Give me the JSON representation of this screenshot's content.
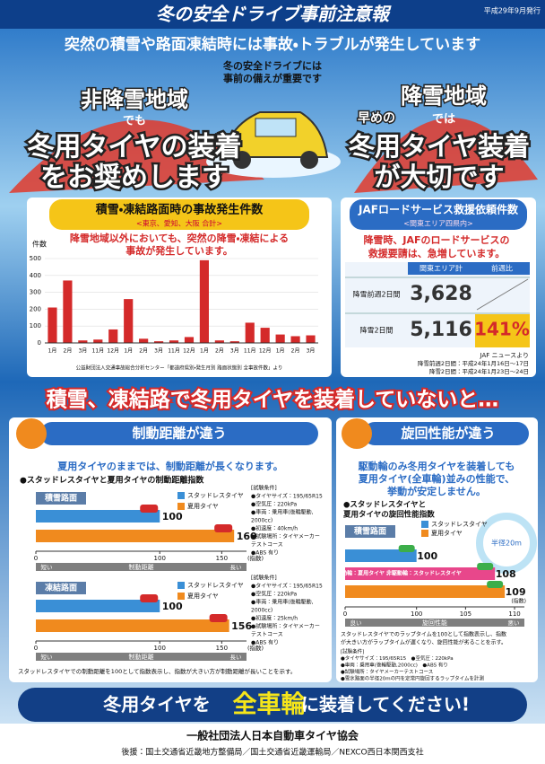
{
  "header": {
    "title": "冬の安全ドライブ事前注意報",
    "date": "平成29年9月発行"
  },
  "headline": "突然の積雪や路面凍結時には事故・トラブルが発生しています",
  "center_note": [
    "冬の安全ドライブには",
    "事前の備えが重要です"
  ],
  "left_panel": {
    "label": "非降雪地域",
    "sub": "でも",
    "message": [
      "冬用タイヤの装着",
      "をお奨めします"
    ]
  },
  "right_panel": {
    "label": "降雪地域",
    "pre": "早めの",
    "sub": "では",
    "message": [
      "冬用タイヤ装着",
      "が大切です"
    ]
  },
  "accident_chart": {
    "type": "bar",
    "title": "積雪・凍結路面時の事故発生件数",
    "subtitle": "<東京、愛知、大阪 合計>",
    "y_label": "件数",
    "note": [
      "降雪地域以外においても、突然の降雪・凍結による",
      "事故が発生しています。"
    ],
    "categories": [
      "1月",
      "2月",
      "3月",
      "11月",
      "12月",
      "1月",
      "2月",
      "3月",
      "11月",
      "12月",
      "1月",
      "2月",
      "3月",
      "11月",
      "12月",
      "1月",
      "2月",
      "3月"
    ],
    "values": [
      210,
      370,
      15,
      20,
      80,
      260,
      25,
      10,
      15,
      35,
      490,
      15,
      10,
      120,
      90,
      50,
      40,
      45
    ],
    "color": "#d42a2a",
    "ylim": [
      0,
      500
    ],
    "yticks": [
      0,
      100,
      200,
      300,
      400,
      500
    ],
    "source": "公益財団法人交通事故総合分析センター「都道府県別・発生月別 路面状態別 全事故件数」より"
  },
  "jaf": {
    "title": "JAFロードサービス救援依頼件数",
    "subtitle": "<関東エリア四県内>",
    "note": [
      "降雪時、JAFのロードサービスの",
      "救援要請は、急増しています。"
    ],
    "columns": [
      "関東エリア計",
      "前週比"
    ],
    "rows": [
      {
        "label": "降雪前週2日間",
        "value": "3,628"
      },
      {
        "label": "降雪2日間",
        "value": "5,116",
        "ratio": "141%"
      }
    ],
    "source": "JAF ニュースより",
    "footnote": [
      "降雪前週2日間：平成24年1月16日〜17日",
      "降雪2日間：平成24年1月23日〜24日"
    ]
  },
  "banner": "積雪、凍結路で冬用タイヤを装着していないと…",
  "braking": {
    "title": "制動距離が違う",
    "note": "夏用タイヤのままでは、制動距離が長くなります。",
    "chart_title": "●スタッドレスタイヤと夏用タイヤの制動距離指数",
    "legend": [
      {
        "name": "スタッドレスタイヤ",
        "color": "#3a8fd6"
      },
      {
        "name": "夏用タイヤ",
        "color": "#f08a1e"
      }
    ],
    "xlim": [
      0,
      170
    ],
    "xticks": [
      0,
      100,
      150
    ],
    "unit": "(指数)",
    "axis_label": "制動距離",
    "axis_ends": [
      "短い",
      "長い"
    ],
    "charts": [
      {
        "surface": "積雪路面",
        "values": [
          100,
          160
        ],
        "conditions": [
          "[試験条件]",
          "●タイヤサイズ：195/65R15",
          "●空気圧：220kPa",
          "●車両：乗用車(後輪駆動,",
          "2000cc)",
          "●初速度：40km/h",
          "●試験場所：タイヤメーカー",
          "テストコース",
          "●ABS 有り"
        ]
      },
      {
        "surface": "凍結路面",
        "values": [
          100,
          156
        ],
        "conditions": [
          "[試験条件]",
          "●タイヤサイズ：195/65R15",
          "●空気圧：220kPa",
          "●車両：乗用車(後輪駆動,",
          "2000cc)",
          "●初速度：25km/h",
          "●試験場所：タイヤメーカー",
          "テストコース",
          "●ABS 有り"
        ]
      }
    ],
    "footnote": "スタッドレスタイヤでの制動距離を100として指数表示し、指数が大きい方が制動距離が長いことを示す。"
  },
  "turning": {
    "title": "旋回性能が違う",
    "note": [
      "駆動輪のみ冬用タイヤを装着しても",
      "夏用タイヤ(全車輪)並みの性能で、",
      "挙動が安定しません。"
    ],
    "chart_title": [
      "●スタッドレスタイヤと",
      "夏用タイヤの旋回性能指数"
    ],
    "surface": "積雪路面",
    "radius": "半径20m",
    "series": [
      {
        "name": "スタッドレスタイヤ",
        "color": "#3a8fd6",
        "value": 100
      },
      {
        "name": "駆動輪：夏用タイヤ 非駆動輪：スタッドレスタイヤ",
        "color": "#e8478b",
        "value": 108
      },
      {
        "name": "夏用タイヤ",
        "color": "#f08a1e",
        "value": 109
      }
    ],
    "xlim": [
      0,
      111
    ],
    "axis_break": 95,
    "xticks": [
      0,
      100,
      105,
      110
    ],
    "unit": "(指数)",
    "axis_label": "旋回性能",
    "axis_ends": [
      "良い",
      "悪い"
    ],
    "footnote": [
      "スタッドレスタイヤでのラップタイムを100として指数表示し、指数",
      "が大きい方がラップタイムが遅くなり、旋回性能が劣ることを示す。"
    ],
    "conditions": [
      "[試験条件]",
      "●タイヤサイズ：195/65R15　●空気圧：220kPa",
      "●車両：乗用車(後輪駆動,2000cc)　●ABS 有り",
      "●試験場所：タイヤメーカーテストコース",
      "●雪氷路面の半径20mの円を定常円旋回するラップタイムを計測"
    ]
  },
  "footer": {
    "cta": [
      "冬用タイヤを",
      "全車輪",
      "に装着してください!"
    ],
    "org": "一般社団法人日本自動車タイヤ協会",
    "support": "後援：国土交通省近畿地方整備局／国土交通省近畿運輸局／NEXCO西日本関西支社"
  }
}
